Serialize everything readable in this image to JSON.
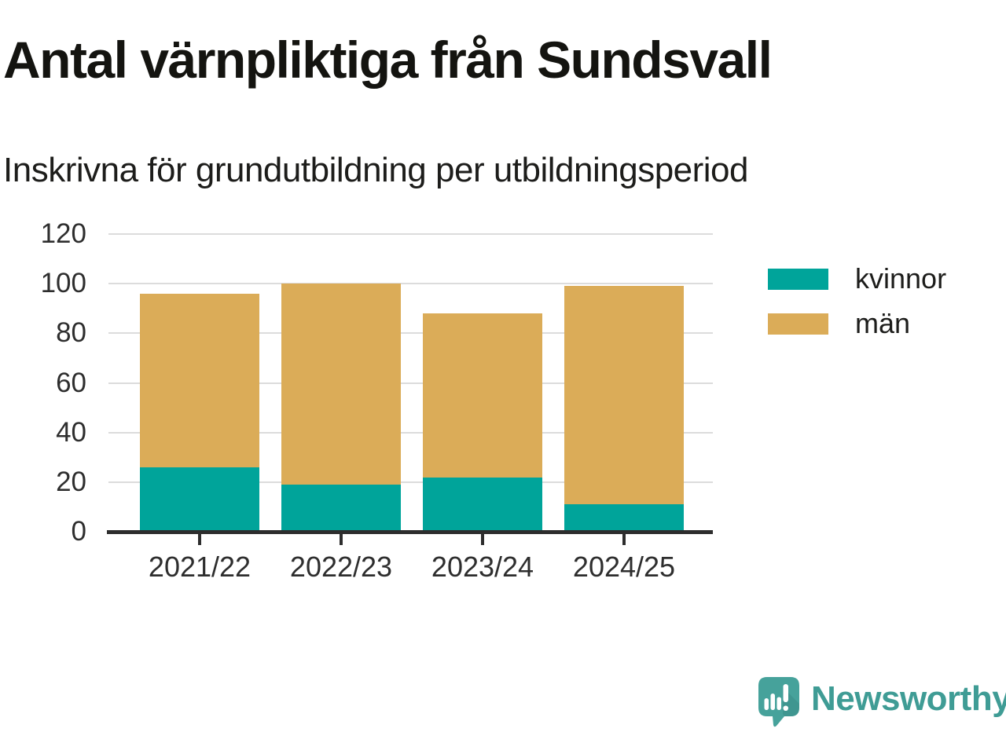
{
  "title": "Antal värnpliktiga från Sundsvall",
  "subtitle": "Inskrivna för grundutbildning per utbildningsperiod",
  "colors": {
    "kvinnor": "#00A49A",
    "man": "#DBAC58",
    "axis": "#2D2D2D",
    "gridline": "#DCDCDC",
    "text": "#1D1D1B",
    "brand_teal": "#3F9C95"
  },
  "chart_data": {
    "type": "bar",
    "stacked": true,
    "title": "Antal värnpliktiga från Sundsvall",
    "subtitle": "Inskrivna för grundutbildning per utbildningsperiod",
    "categories": [
      "2021/22",
      "2022/23",
      "2023/24",
      "2024/25"
    ],
    "series": [
      {
        "name": "kvinnor",
        "color": "#00A49A",
        "values": [
          26,
          19,
          22,
          11
        ]
      },
      {
        "name": "män",
        "color": "#DBAC58",
        "values": [
          70,
          81,
          66,
          88
        ]
      }
    ],
    "totals": [
      96,
      100,
      88,
      99
    ],
    "xlabel": "",
    "ylabel": "",
    "ylim": [
      0,
      120
    ],
    "yticks": [
      0,
      20,
      40,
      60,
      80,
      100,
      120
    ],
    "grid": true,
    "legend_position": "right"
  },
  "footer": {
    "brand": "Newsworthy"
  }
}
